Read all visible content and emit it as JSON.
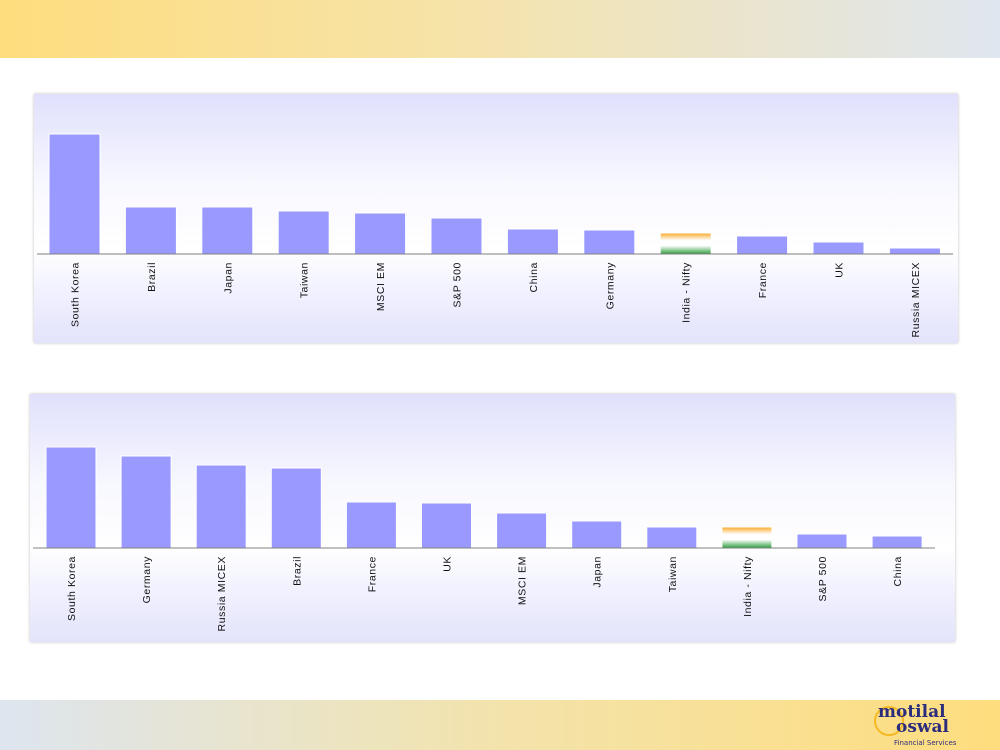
{
  "header": {},
  "logo": {
    "line1": "motilal",
    "line2": "oswal",
    "line3": "Financial Services"
  },
  "colors": {
    "bar": "#9999ff",
    "india_top": "#f9a825",
    "india_mid": "#ffffff",
    "india_bottom": "#2e9e3c"
  },
  "chart_data": [
    {
      "type": "bar",
      "title": "",
      "xlabel": "",
      "ylabel": "",
      "categories": [
        "South Korea",
        "Brazil",
        "Japan",
        "Taiwan",
        "MSCI EM",
        "S&P 500",
        "China",
        "Germany",
        "India - Nifty",
        "France",
        "UK",
        "Russia MICEX"
      ],
      "values": [
        120,
        47,
        47,
        43,
        41,
        36,
        25,
        24,
        21,
        18,
        12,
        6
      ],
      "highlight": "India - Nifty",
      "ylim": [
        0,
        140
      ],
      "grid": false
    },
    {
      "type": "bar",
      "title": "",
      "xlabel": "",
      "ylabel": "",
      "categories": [
        "South Korea",
        "Germany",
        "Russia MICEX",
        "Brazil",
        "France",
        "UK",
        "MSCI EM",
        "Japan",
        "Taiwan",
        "India - Nifty",
        "S&P 500",
        "China"
      ],
      "values": [
        101,
        92,
        83,
        80,
        46,
        45,
        35,
        27,
        21,
        21,
        14,
        12
      ],
      "highlight": "India - Nifty",
      "ylim": [
        0,
        140
      ],
      "grid": false
    }
  ]
}
